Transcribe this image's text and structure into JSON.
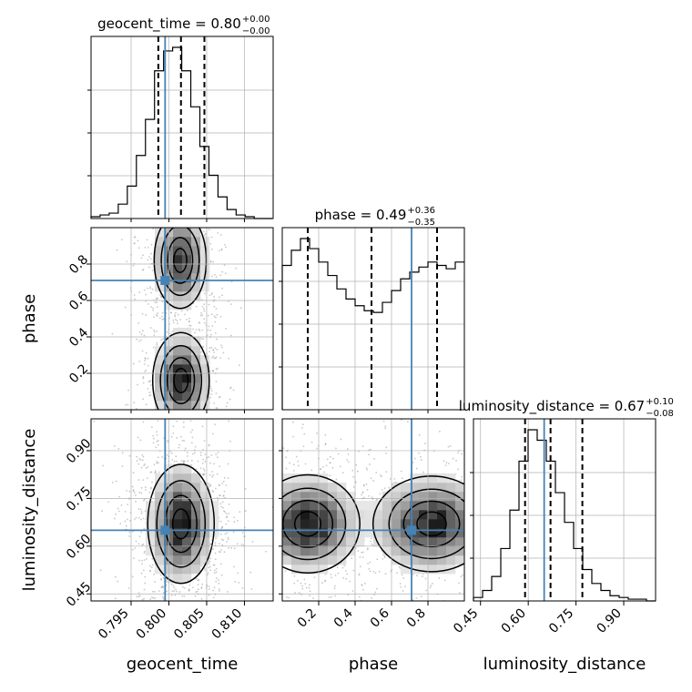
{
  "chart_data": {
    "type": "corner",
    "parameters": [
      "geocent_time",
      "phase",
      "luminosity_distance"
    ],
    "axis_labels": {
      "geocent_time": "geocent_time",
      "phase": "phase",
      "luminosity_distance": "luminosity_distance"
    },
    "ranges": {
      "geocent_time": [
        0.7897,
        0.8138
      ],
      "phase": [
        0.0,
        1.0
      ],
      "luminosity_distance": [
        0.4279,
        1.0
      ]
    },
    "injection": {
      "geocent_time": 0.7995,
      "phase": 0.71,
      "luminosity_distance": 0.65
    },
    "titles": [
      {
        "param": "geocent_time",
        "name": "geocent_time",
        "value": "0.80",
        "plus": "+0.00",
        "minus": "−0.00"
      },
      {
        "param": "phase",
        "name": "phase",
        "value": "0.49",
        "plus": "+0.36",
        "minus": "−0.35"
      },
      {
        "param": "luminosity_distance",
        "name": "luminosity_distance",
        "value": "0.67",
        "plus": "+0.10",
        "minus": "−0.08"
      }
    ],
    "quantiles": {
      "geocent_time": [
        0.7986,
        0.8016,
        0.8047
      ],
      "phase": [
        0.14,
        0.49,
        0.85
      ],
      "luminosity_distance": [
        0.59,
        0.67,
        0.77
      ]
    },
    "ticks": {
      "geocent_time": {
        "values": [
          0.795,
          0.8,
          0.805,
          0.81
        ],
        "labels": [
          "0.795",
          "0.800",
          "0.805",
          "0.810"
        ]
      },
      "phase": {
        "values": [
          0.2,
          0.4,
          0.6,
          0.8
        ],
        "labels": [
          "0.2",
          "0.4",
          "0.6",
          "0.8"
        ]
      },
      "luminosity_distance": {
        "values": [
          0.45,
          0.6,
          0.75,
          0.9
        ],
        "labels": [
          "0.45",
          "0.60",
          "0.75",
          "0.90"
        ]
      }
    },
    "hist_1d": {
      "geocent_time": {
        "edges_start": 0.7897,
        "bin_width": 0.0012,
        "counts": [
          1,
          2,
          3,
          8,
          18,
          35,
          55,
          82,
          93,
          95,
          82,
          62,
          40,
          24,
          12,
          5,
          2,
          1,
          0,
          0
        ]
      },
      "phase": {
        "edges_start": 0.0,
        "bin_width": 0.05,
        "counts": [
          86,
          95,
          102,
          96,
          88,
          80,
          72,
          66,
          62,
          59,
          58,
          64,
          71,
          78,
          82,
          85,
          88,
          86,
          84,
          88
        ]
      },
      "luminosity_distance": {
        "edges_start": 0.4279,
        "bin_width": 0.0286,
        "counts": [
          2,
          6,
          14,
          30,
          52,
          80,
          98,
          92,
          80,
          62,
          45,
          30,
          18,
          10,
          6,
          3,
          2,
          1,
          1,
          0
        ]
      }
    },
    "density_2d": [
      {
        "x": "geocent_time",
        "y": "phase",
        "modes": [
          {
            "cx": 0.8016,
            "cy": 0.16,
            "sx": 0.0017,
            "sy": 0.12,
            "w": 1.0
          },
          {
            "cx": 0.8015,
            "cy": 0.82,
            "sx": 0.0017,
            "sy": 0.13,
            "w": 0.85
          }
        ]
      },
      {
        "x": "geocent_time",
        "y": "luminosity_distance",
        "modes": [
          {
            "cx": 0.8016,
            "cy": 0.67,
            "sx": 0.002,
            "sy": 0.085,
            "w": 1.0
          }
        ]
      },
      {
        "x": "phase",
        "y": "luminosity_distance",
        "modes": [
          {
            "cx": 0.14,
            "cy": 0.67,
            "sx": 0.13,
            "sy": 0.07,
            "w": 1.0
          },
          {
            "cx": 0.82,
            "cy": 0.67,
            "sx": 0.15,
            "sy": 0.07,
            "w": 0.95
          }
        ]
      }
    ],
    "grid": true,
    "colors": {
      "truth": "#4682b4",
      "hist": "#000000",
      "density_max": "#000000",
      "grid": "#b0b0b0"
    }
  }
}
